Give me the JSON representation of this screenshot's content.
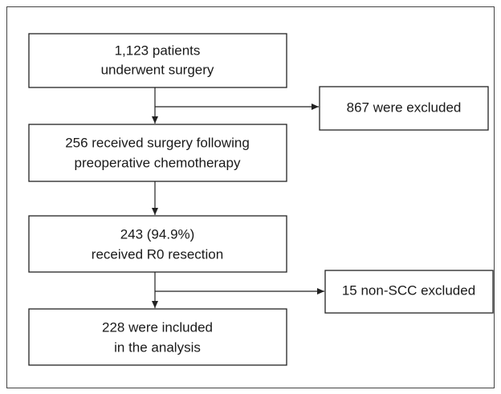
{
  "nodes": [
    {
      "lines": [
        "1,123 patients",
        "underwent surgery"
      ]
    },
    {
      "lines": [
        "867 were excluded"
      ]
    },
    {
      "lines": [
        "256 received surgery following",
        "preoperative chemotherapy"
      ]
    },
    {
      "lines": [
        "243 (94.9%)",
        "received R0 resection"
      ]
    },
    {
      "lines": [
        "15 non-SCC excluded"
      ]
    },
    {
      "lines": [
        "228 were included",
        "in the analysis"
      ]
    }
  ]
}
